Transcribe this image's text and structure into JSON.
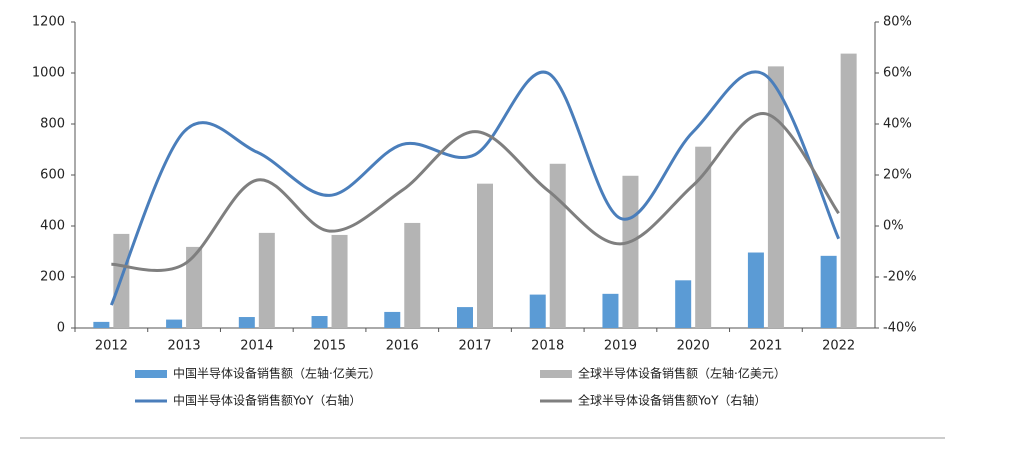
{
  "chart_data": {
    "type": "bar-line",
    "categories": [
      "2012",
      "2013",
      "2014",
      "2015",
      "2016",
      "2017",
      "2018",
      "2019",
      "2020",
      "2021",
      "2022"
    ],
    "series": [
      {
        "name": "中国半导体设备销售额（左轴·亿美元）",
        "type": "bar",
        "color": "#5b9bd5",
        "values": [
          24,
          33,
          43,
          47,
          63,
          82,
          131,
          134,
          187,
          296,
          283
        ]
      },
      {
        "name": "全球半导体设备销售额（左轴·亿美元）",
        "type": "bar",
        "color": "#b4b4b4",
        "values": [
          369,
          318,
          373,
          365,
          412,
          566,
          644,
          597,
          711,
          1026,
          1076
        ]
      },
      {
        "name": "中国半导体设备销售额YoY（右轴）",
        "type": "line",
        "axis": "y2",
        "color": "#4a7ebb",
        "values": [
          -31,
          37,
          29,
          12,
          32,
          28,
          60,
          3,
          37,
          59,
          -5
        ]
      },
      {
        "name": "全球半导体设备销售额YoY（右轴）",
        "type": "line",
        "axis": "y2",
        "color": "#7f7f7f",
        "values": [
          -15,
          -15,
          18,
          -2,
          14,
          37,
          14,
          -7,
          16,
          44,
          5
        ]
      }
    ],
    "ylim": [
      0,
      1200
    ],
    "yticks": [
      0,
      200,
      400,
      600,
      800,
      1000,
      1200
    ],
    "y2lim": [
      -40,
      80
    ],
    "y2ticks": [
      {
        "value": -40,
        "label": "-40%"
      },
      {
        "value": -20,
        "label": "-20%"
      },
      {
        "value": 0,
        "label": "0%"
      },
      {
        "value": 20,
        "label": "20%"
      },
      {
        "value": 40,
        "label": "40%"
      },
      {
        "value": 60,
        "label": "60%"
      },
      {
        "value": 80,
        "label": "80%"
      }
    ]
  }
}
